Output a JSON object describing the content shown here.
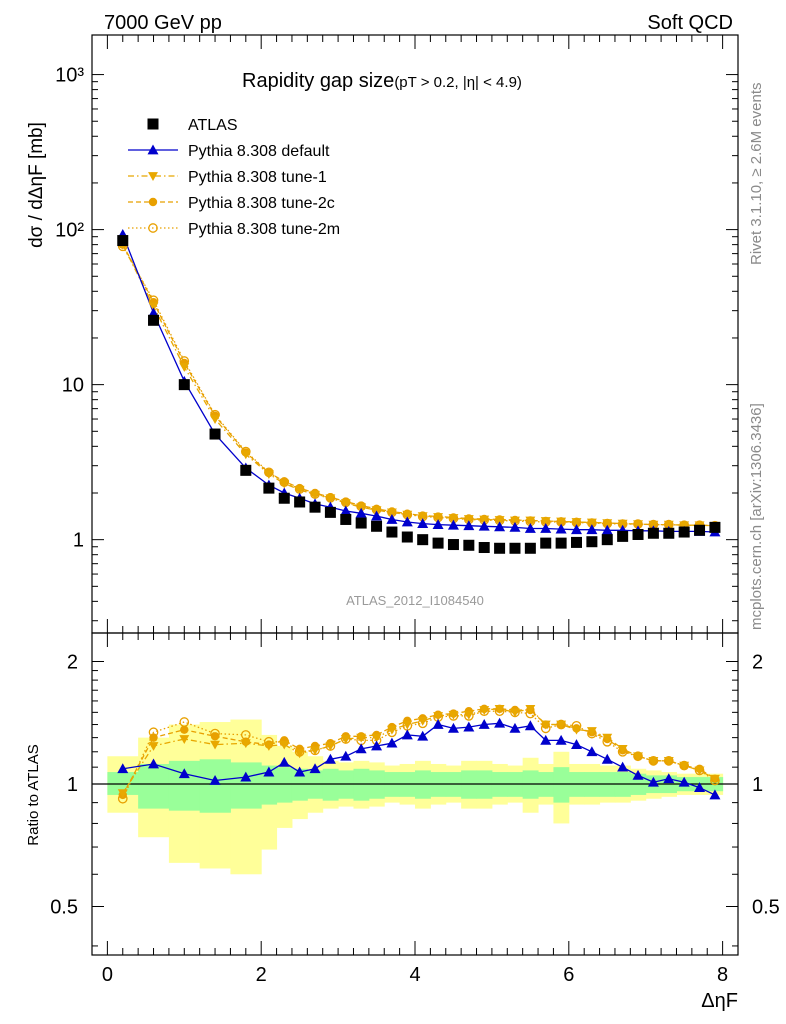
{
  "header": {
    "left": "7000 GeV pp",
    "right": "Soft QCD"
  },
  "side_labels": {
    "top": "Rivet 3.1.10, ≥ 2.6M events",
    "bottom": "mcplots.cern.ch [arXiv:1306.3436]"
  },
  "chart_data": {
    "type": "scatter",
    "title": "Rapidity gap size",
    "title_suffix": "(pT > 0.2, |η| < 4.9)",
    "watermark": "ATLAS_2012_I1084540",
    "xlabel": "ΔηF",
    "ylabel": "dσ / dΔηF [mb]",
    "ratio_ylabel": "Ratio to ATLAS",
    "xlim": [
      -0.2,
      8.2
    ],
    "ylim": [
      0.25,
      1800
    ],
    "ylog": true,
    "ratio_ylim": [
      0.38,
      2.35
    ],
    "ratio_ylog": true,
    "x_ticks": [
      "0",
      "2",
      "4",
      "6",
      "8"
    ],
    "y_ticks": [
      "10³",
      "10²",
      "10",
      "1"
    ],
    "ratio_ticks": [
      "2",
      "1",
      "0.5"
    ],
    "legend_position": "top-left",
    "x": [
      0.2,
      0.6,
      1.0,
      1.4,
      1.8,
      2.1,
      2.3,
      2.5,
      2.7,
      2.9,
      3.1,
      3.3,
      3.5,
      3.7,
      3.9,
      4.1,
      4.3,
      4.5,
      4.7,
      4.9,
      5.1,
      5.3,
      5.5,
      5.7,
      5.9,
      6.1,
      6.3,
      6.5,
      6.7,
      6.9,
      7.1,
      7.3,
      7.5,
      7.7,
      7.9
    ],
    "bin_edges": [
      0.0,
      0.4,
      0.8,
      1.2,
      1.6,
      2.0,
      2.2,
      2.4,
      2.6,
      2.8,
      3.0,
      3.2,
      3.4,
      3.6,
      3.8,
      4.0,
      4.2,
      4.4,
      4.6,
      4.8,
      5.0,
      5.2,
      5.4,
      5.6,
      5.8,
      6.0,
      6.2,
      6.4,
      6.6,
      6.8,
      7.0,
      7.2,
      7.4,
      7.6,
      7.8,
      8.0
    ],
    "band_inner": {
      "lo": [
        0.94,
        0.87,
        0.86,
        0.85,
        0.87,
        0.89,
        0.9,
        0.91,
        0.92,
        0.91,
        0.92,
        0.91,
        0.92,
        0.93,
        0.93,
        0.92,
        0.93,
        0.93,
        0.92,
        0.92,
        0.93,
        0.93,
        0.92,
        0.93,
        0.9,
        0.93,
        0.93,
        0.93,
        0.93,
        0.94,
        0.95,
        0.95,
        0.96,
        0.96,
        0.96
      ],
      "hi": [
        1.07,
        1.12,
        1.14,
        1.15,
        1.13,
        1.11,
        1.1,
        1.09,
        1.08,
        1.09,
        1.08,
        1.09,
        1.08,
        1.07,
        1.07,
        1.08,
        1.07,
        1.07,
        1.08,
        1.08,
        1.07,
        1.07,
        1.08,
        1.07,
        1.1,
        1.07,
        1.07,
        1.07,
        1.07,
        1.06,
        1.05,
        1.05,
        1.04,
        1.04,
        1.04
      ]
    },
    "band_outer": {
      "lo": [
        0.85,
        0.74,
        0.64,
        0.62,
        0.6,
        0.69,
        0.78,
        0.82,
        0.85,
        0.87,
        0.88,
        0.87,
        0.88,
        0.9,
        0.89,
        0.87,
        0.89,
        0.9,
        0.87,
        0.87,
        0.89,
        0.9,
        0.85,
        0.89,
        0.8,
        0.89,
        0.89,
        0.9,
        0.9,
        0.91,
        0.92,
        0.93,
        0.94,
        0.94,
        0.94
      ],
      "hi": [
        1.17,
        1.3,
        1.4,
        1.42,
        1.44,
        1.32,
        1.24,
        1.2,
        1.17,
        1.14,
        1.13,
        1.14,
        1.13,
        1.11,
        1.12,
        1.14,
        1.12,
        1.11,
        1.14,
        1.14,
        1.12,
        1.11,
        1.16,
        1.12,
        1.2,
        1.12,
        1.12,
        1.11,
        1.11,
        1.09,
        1.08,
        1.07,
        1.06,
        1.06,
        1.06
      ]
    },
    "series": [
      {
        "name": "ATLAS",
        "marker": "square-filled",
        "color": "#000000",
        "line": "none",
        "values": [
          85,
          26,
          10,
          4.8,
          2.8,
          2.15,
          1.85,
          1.75,
          1.62,
          1.5,
          1.35,
          1.28,
          1.22,
          1.12,
          1.04,
          1.0,
          0.95,
          0.93,
          0.92,
          0.89,
          0.88,
          0.88,
          0.88,
          0.95,
          0.95,
          0.96,
          0.97,
          1.0,
          1.05,
          1.08,
          1.1,
          1.1,
          1.12,
          1.15,
          1.2
        ]
      },
      {
        "name": "Pythia 8.308 default",
        "marker": "triangle-up-filled",
        "color": "#0000cc",
        "line": "solid",
        "values": [
          93,
          29,
          10.5,
          4.8,
          2.9,
          2.25,
          2.0,
          1.85,
          1.7,
          1.62,
          1.53,
          1.48,
          1.42,
          1.35,
          1.3,
          1.27,
          1.25,
          1.24,
          1.23,
          1.22,
          1.21,
          1.2,
          1.18,
          1.18,
          1.17,
          1.16,
          1.16,
          1.15,
          1.15,
          1.14,
          1.14,
          1.13,
          1.13,
          1.13,
          1.12
        ]
      },
      {
        "name": "Pythia 8.308 tune-1",
        "marker": "triangle-down-filled",
        "color": "#e8a800",
        "line": "dashdot",
        "values": [
          80,
          32,
          13,
          6.0,
          3.55,
          2.65,
          2.3,
          2.1,
          1.95,
          1.85,
          1.72,
          1.62,
          1.55,
          1.5,
          1.45,
          1.42,
          1.4,
          1.38,
          1.36,
          1.35,
          1.34,
          1.33,
          1.33,
          1.32,
          1.31,
          1.3,
          1.29,
          1.28,
          1.27,
          1.26,
          1.25,
          1.25,
          1.24,
          1.24,
          1.23
        ]
      },
      {
        "name": "Pythia 8.308 tune-2c",
        "marker": "circle-filled",
        "color": "#e8a000",
        "line": "dashed",
        "values": [
          80,
          34,
          13.8,
          6.3,
          3.65,
          2.7,
          2.38,
          2.15,
          2.0,
          1.88,
          1.76,
          1.66,
          1.58,
          1.52,
          1.47,
          1.43,
          1.41,
          1.39,
          1.37,
          1.36,
          1.35,
          1.34,
          1.33,
          1.32,
          1.31,
          1.3,
          1.29,
          1.28,
          1.27,
          1.26,
          1.25,
          1.25,
          1.24,
          1.24,
          1.23
        ]
      },
      {
        "name": "Pythia 8.308 tune-2m",
        "marker": "circle-open",
        "color": "#e8a000",
        "line": "dotted",
        "values": [
          78,
          35,
          14.2,
          6.4,
          3.7,
          2.72,
          2.35,
          2.12,
          1.97,
          1.86,
          1.74,
          1.64,
          1.56,
          1.5,
          1.45,
          1.41,
          1.39,
          1.37,
          1.35,
          1.34,
          1.33,
          1.32,
          1.31,
          1.3,
          1.3,
          1.29,
          1.28,
          1.27,
          1.26,
          1.26,
          1.25,
          1.25,
          1.24,
          1.24,
          1.23
        ]
      }
    ],
    "ratios": [
      {
        "name": "Pythia 8.308 default",
        "values": [
          1.09,
          1.12,
          1.06,
          1.02,
          1.04,
          1.07,
          1.13,
          1.07,
          1.09,
          1.15,
          1.17,
          1.22,
          1.24,
          1.26,
          1.32,
          1.31,
          1.4,
          1.37,
          1.38,
          1.4,
          1.41,
          1.37,
          1.39,
          1.28,
          1.28,
          1.25,
          1.2,
          1.15,
          1.1,
          1.05,
          1.01,
          1.03,
          1.01,
          0.98,
          0.94
        ]
      },
      {
        "name": "Pythia 8.308 tune-1",
        "values": [
          0.95,
          1.24,
          1.29,
          1.25,
          1.26,
          1.24,
          1.25,
          1.19,
          1.21,
          1.24,
          1.29,
          1.3,
          1.3,
          1.36,
          1.4,
          1.43,
          1.47,
          1.48,
          1.48,
          1.52,
          1.53,
          1.5,
          1.53,
          1.4,
          1.4,
          1.36,
          1.35,
          1.3,
          1.22,
          1.17,
          1.14,
          1.14,
          1.11,
          1.08,
          1.03
        ]
      },
      {
        "name": "Pythia 8.308 tune-2c",
        "values": [
          0.94,
          1.3,
          1.36,
          1.31,
          1.27,
          1.25,
          1.28,
          1.22,
          1.24,
          1.26,
          1.31,
          1.31,
          1.32,
          1.38,
          1.43,
          1.45,
          1.48,
          1.49,
          1.51,
          1.53,
          1.53,
          1.52,
          1.52,
          1.4,
          1.4,
          1.37,
          1.34,
          1.29,
          1.21,
          1.17,
          1.14,
          1.14,
          1.11,
          1.09,
          1.03
        ]
      },
      {
        "name": "Pythia 8.308 tune-2m",
        "values": [
          0.92,
          1.34,
          1.42,
          1.33,
          1.32,
          1.27,
          1.27,
          1.2,
          1.21,
          1.24,
          1.29,
          1.28,
          1.28,
          1.34,
          1.39,
          1.41,
          1.46,
          1.47,
          1.47,
          1.51,
          1.51,
          1.5,
          1.49,
          1.37,
          1.4,
          1.39,
          1.33,
          1.27,
          1.2,
          1.17,
          1.14,
          1.14,
          1.11,
          1.08,
          1.02
        ]
      }
    ]
  }
}
